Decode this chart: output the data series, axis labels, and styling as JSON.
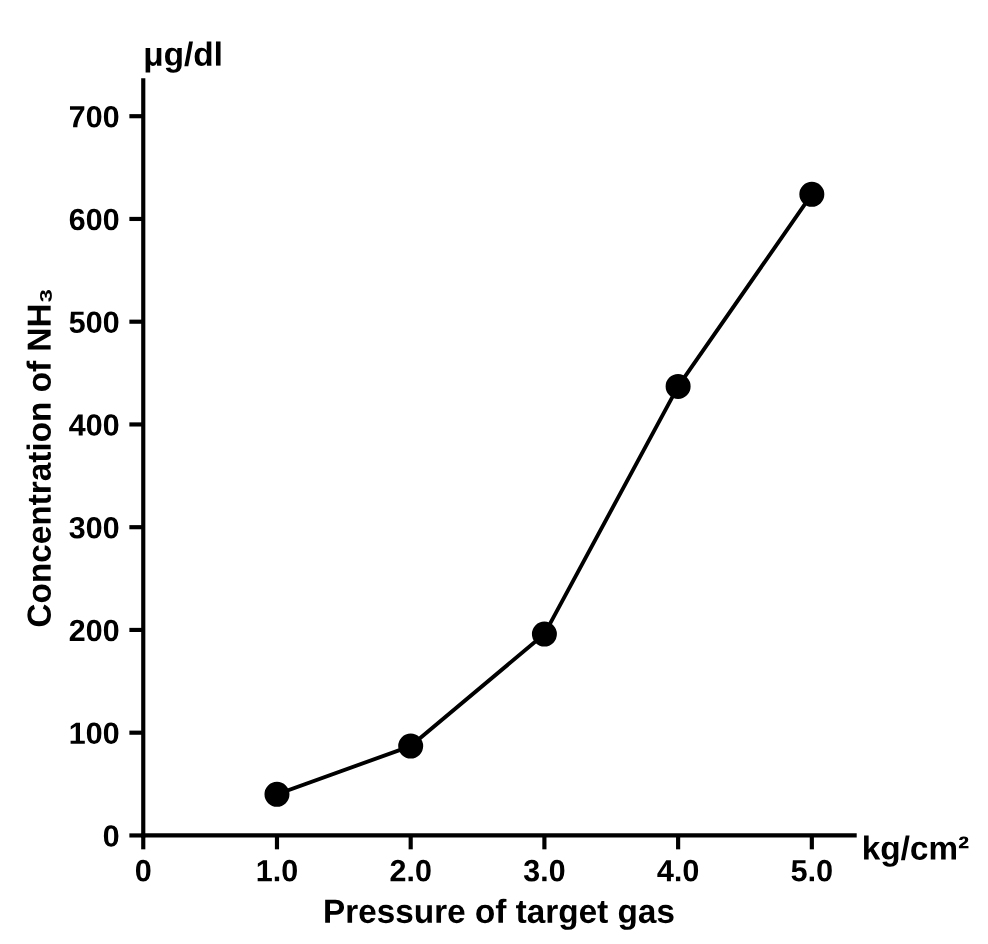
{
  "chart_data": {
    "type": "line",
    "xlabel": "Pressure of target gas",
    "ylabel": "Concentration of NH₃",
    "annotations": [
      "μg/dl",
      "kg/cm²"
    ],
    "x": [
      1.0,
      2.0,
      3.0,
      4.0,
      5.0
    ],
    "series": [
      {
        "color": "#000000",
        "values": [
          40,
          87,
          196,
          437,
          624
        ]
      }
    ],
    "marker": "circle",
    "line_style": "solid",
    "xlim": [
      0,
      5.32
    ],
    "ylim": [
      0,
      735
    ],
    "xticks": [
      0,
      {
        "value": 1,
        "label": "1.0"
      },
      {
        "value": 2,
        "label": "2.0"
      },
      {
        "value": 3,
        "label": "3.0"
      },
      {
        "value": 4,
        "label": "4.0"
      },
      {
        "value": 5,
        "label": "5.0"
      }
    ],
    "yticks": [
      0,
      100,
      200,
      300,
      400,
      500,
      600,
      700
    ],
    "grid": false,
    "legend": false
  }
}
